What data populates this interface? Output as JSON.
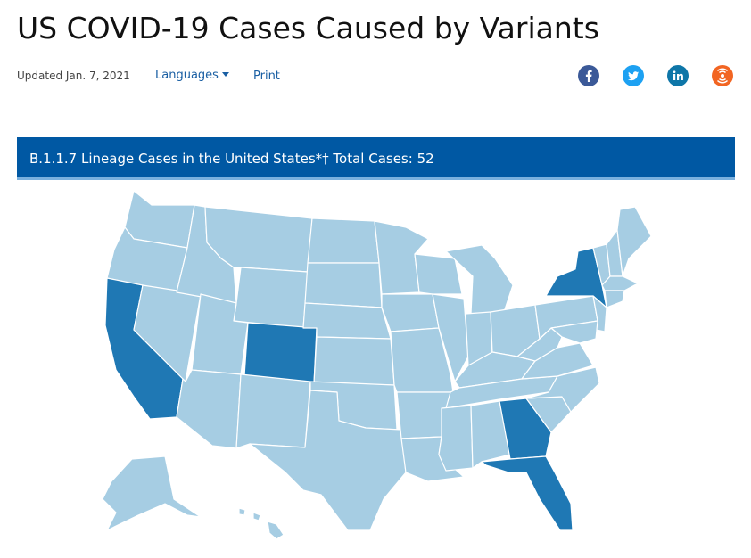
{
  "page": {
    "title": "US COVID-19 Cases Caused by Variants"
  },
  "meta": {
    "updated": "Updated Jan. 7, 2021",
    "languages_label": "Languages",
    "print_label": "Print"
  },
  "share": [
    {
      "icon": "facebook-icon",
      "color": "#3b5998"
    },
    {
      "icon": "twitter-icon",
      "color": "#1da1f2"
    },
    {
      "icon": "linkedin-icon",
      "color": "#0e76a8"
    },
    {
      "icon": "syndicate-icon",
      "color": "#f26522"
    }
  ],
  "banner": {
    "text": "B.1.1.7 Lineage Cases in the United States*† Total Cases: 52"
  },
  "map": {
    "colors": {
      "no_cases": "#a6cde3",
      "cases": "#1f78b4"
    },
    "states_with_cases": [
      "California",
      "Colorado",
      "New York",
      "Georgia",
      "Florida"
    ]
  }
}
